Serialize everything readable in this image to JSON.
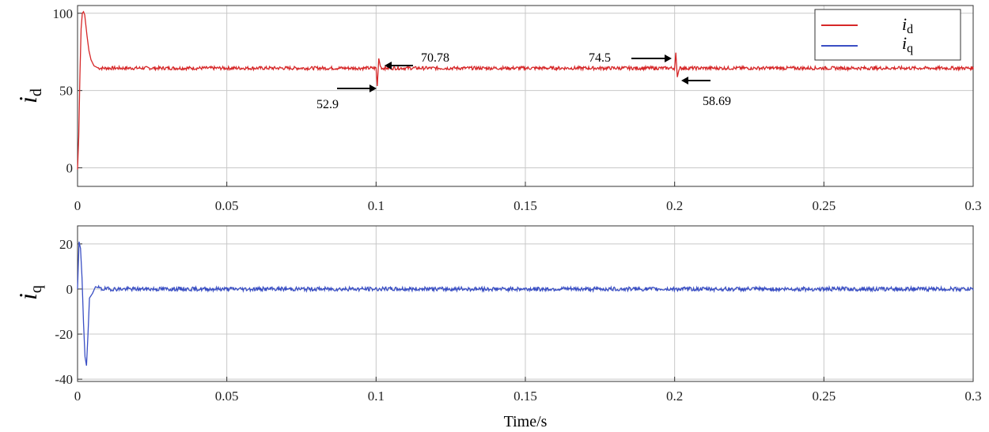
{
  "chart_data": [
    {
      "type": "line",
      "ylabel": "i",
      "ylabel_sub": "d",
      "xlim": [
        0,
        0.3
      ],
      "ylim": [
        -12,
        105
      ],
      "xticks": [
        "0",
        "0.05",
        "0.1",
        "0.15",
        "0.2",
        "0.25",
        "0.3"
      ],
      "yticks": [
        "0",
        "50",
        "100"
      ],
      "ytick_values": [
        0,
        50,
        100
      ],
      "grid": true,
      "legend_position": "top-right",
      "legend": [
        {
          "symbol": "i",
          "sub": "d",
          "color": "#d62728"
        },
        {
          "symbol": "i",
          "sub": "q",
          "color": "#3a4fc4"
        }
      ],
      "series": [
        {
          "name": "id",
          "color": "#d62728",
          "steady": 64.5,
          "x": [
            0,
            0.0004,
            0.0008,
            0.0012,
            0.0016,
            0.002,
            0.0024,
            0.0028,
            0.0032,
            0.0038,
            0.0045,
            0.0055,
            0.007,
            0.1,
            0.1004,
            0.1009,
            0.1014,
            0.1018,
            0.103,
            0.2,
            0.2004,
            0.2009,
            0.2014,
            0.2018,
            0.203,
            0.3
          ],
          "values": [
            -1,
            20,
            60,
            90,
            100,
            101,
            99,
            92,
            85,
            76,
            70,
            66,
            64.5,
            64.5,
            52.9,
            70.78,
            66,
            64.5,
            64.5,
            64.5,
            74.5,
            58.69,
            63,
            64.5,
            64.5,
            64.5
          ]
        }
      ],
      "annotations": [
        {
          "text": "70.78",
          "x": 0.1009,
          "y": 70.78,
          "arrow": "left"
        },
        {
          "text": "52.9",
          "x": 0.1004,
          "y": 52.9,
          "arrow": "right"
        },
        {
          "text": "74.5",
          "x": 0.2004,
          "y": 74.5,
          "arrow": "right"
        },
        {
          "text": "58.69",
          "x": 0.2009,
          "y": 58.69,
          "arrow": "left"
        }
      ]
    },
    {
      "type": "line",
      "ylabel": "i",
      "ylabel_sub": "q",
      "xlabel": "Time/s",
      "xlim": [
        0,
        0.3
      ],
      "ylim": [
        -41,
        28
      ],
      "xticks": [
        "0",
        "0.05",
        "0.1",
        "0.15",
        "0.2",
        "0.25",
        "0.3"
      ],
      "yticks": [
        "20",
        "0",
        "-20",
        "-40"
      ],
      "ytick_values": [
        20,
        0,
        -20,
        -40
      ],
      "grid": true,
      "series": [
        {
          "name": "iq",
          "color": "#3a4fc4",
          "steady": 0,
          "x": [
            0,
            0.0005,
            0.001,
            0.0015,
            0.002,
            0.0025,
            0.003,
            0.0035,
            0.004,
            0.005,
            0.006,
            0.008,
            0.3
          ],
          "values": [
            0,
            21,
            18,
            5,
            -15,
            -30,
            -34,
            -20,
            -4,
            -2,
            1,
            0,
            0
          ]
        }
      ]
    }
  ]
}
